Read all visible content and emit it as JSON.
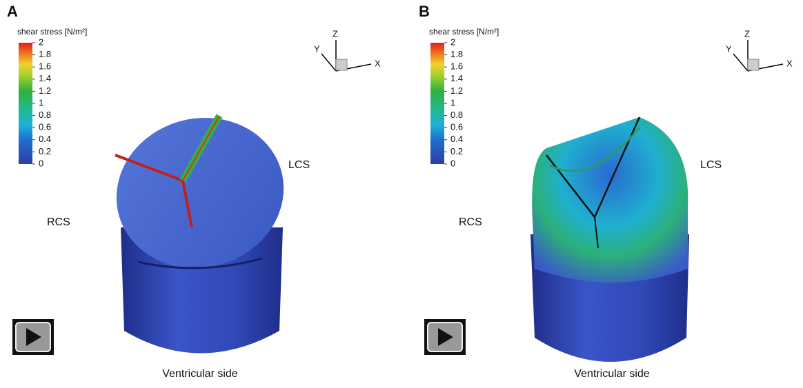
{
  "panels": [
    {
      "label": "A",
      "colorbar": {
        "title": "shear stress [N/m²]",
        "range": [
          0,
          2
        ],
        "ticks": [
          0,
          0.2,
          0.4,
          0.6,
          0.8,
          1,
          1.2,
          1.4,
          1.6,
          1.8,
          2
        ]
      },
      "axes": {
        "x": "X",
        "y": "Y",
        "z": "Z"
      },
      "annotations": {
        "left": "RCS",
        "right": "LCS",
        "bottom": "Ventricular side"
      }
    },
    {
      "label": "B",
      "colorbar": {
        "title": "shear stress [N/m²]",
        "range": [
          0,
          2
        ],
        "ticks": [
          0,
          0.2,
          0.4,
          0.6,
          0.8,
          1,
          1.2,
          1.4,
          1.6,
          1.8,
          2
        ]
      },
      "axes": {
        "x": "X",
        "y": "Y",
        "z": "Z"
      },
      "annotations": {
        "left": "RCS",
        "right": "LCS",
        "bottom": "Ventricular side"
      }
    }
  ]
}
